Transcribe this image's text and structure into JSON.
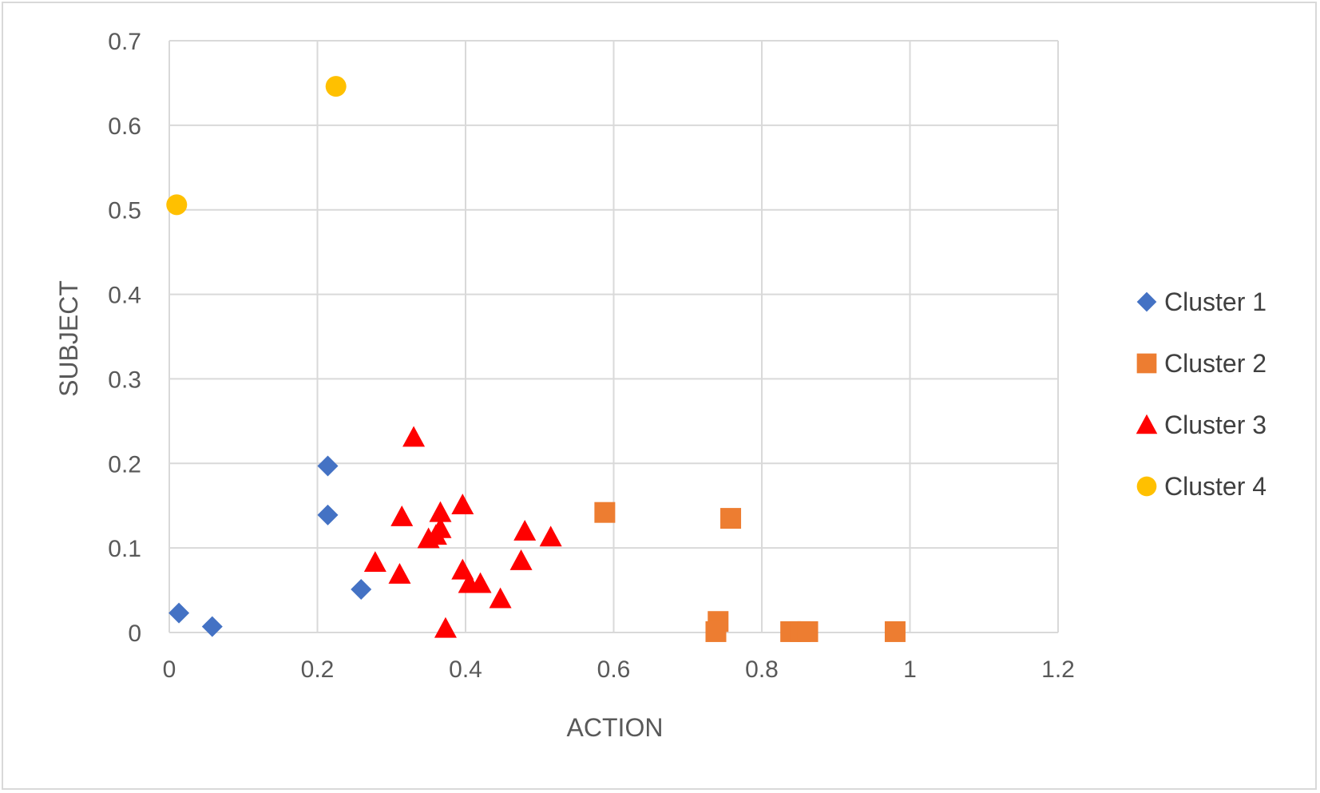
{
  "chart_data": {
    "type": "scatter",
    "title": "",
    "xlabel": "ACTION",
    "ylabel": "SUBJECT",
    "xlim": [
      0,
      1.2
    ],
    "ylim": [
      0,
      0.7
    ],
    "x_ticks": [
      "0",
      "0.2",
      "0.4",
      "0.6",
      "0.8",
      "1",
      "1.2"
    ],
    "y_ticks": [
      "0",
      "0.1",
      "0.2",
      "0.3",
      "0.4",
      "0.5",
      "0.6",
      "0.7"
    ],
    "grid": true,
    "legend_position": "right",
    "series": [
      {
        "name": "Cluster 1",
        "marker": "diamond",
        "color": "#4472C4",
        "points": [
          [
            0.214,
            0.197
          ],
          [
            0.214,
            0.139
          ],
          [
            0.259,
            0.051
          ],
          [
            0.013,
            0.023
          ],
          [
            0.058,
            0.007
          ]
        ]
      },
      {
        "name": "Cluster 2",
        "marker": "square",
        "color": "#ED7D31",
        "points": [
          [
            0.588,
            0.142
          ],
          [
            0.758,
            0.135
          ],
          [
            0.741,
            0.013
          ],
          [
            0.738,
            0.001
          ],
          [
            0.839,
            0.001
          ],
          [
            0.852,
            0.001
          ],
          [
            0.862,
            0.001
          ],
          [
            0.98,
            0.001
          ]
        ]
      },
      {
        "name": "Cluster 3",
        "marker": "triangle",
        "color": "#FF0000",
        "points": [
          [
            0.33,
            0.231
          ],
          [
            0.396,
            0.151
          ],
          [
            0.366,
            0.142
          ],
          [
            0.314,
            0.137
          ],
          [
            0.48,
            0.12
          ],
          [
            0.515,
            0.113
          ],
          [
            0.366,
            0.123
          ],
          [
            0.36,
            0.115
          ],
          [
            0.35,
            0.111
          ],
          [
            0.278,
            0.083
          ],
          [
            0.475,
            0.085
          ],
          [
            0.311,
            0.069
          ],
          [
            0.396,
            0.074
          ],
          [
            0.405,
            0.058
          ],
          [
            0.42,
            0.058
          ],
          [
            0.447,
            0.04
          ],
          [
            0.373,
            0.005
          ]
        ]
      },
      {
        "name": "Cluster 4",
        "marker": "circle",
        "color": "#FFC000",
        "points": [
          [
            0.225,
            0.646
          ],
          [
            0.01,
            0.506
          ]
        ]
      }
    ]
  }
}
